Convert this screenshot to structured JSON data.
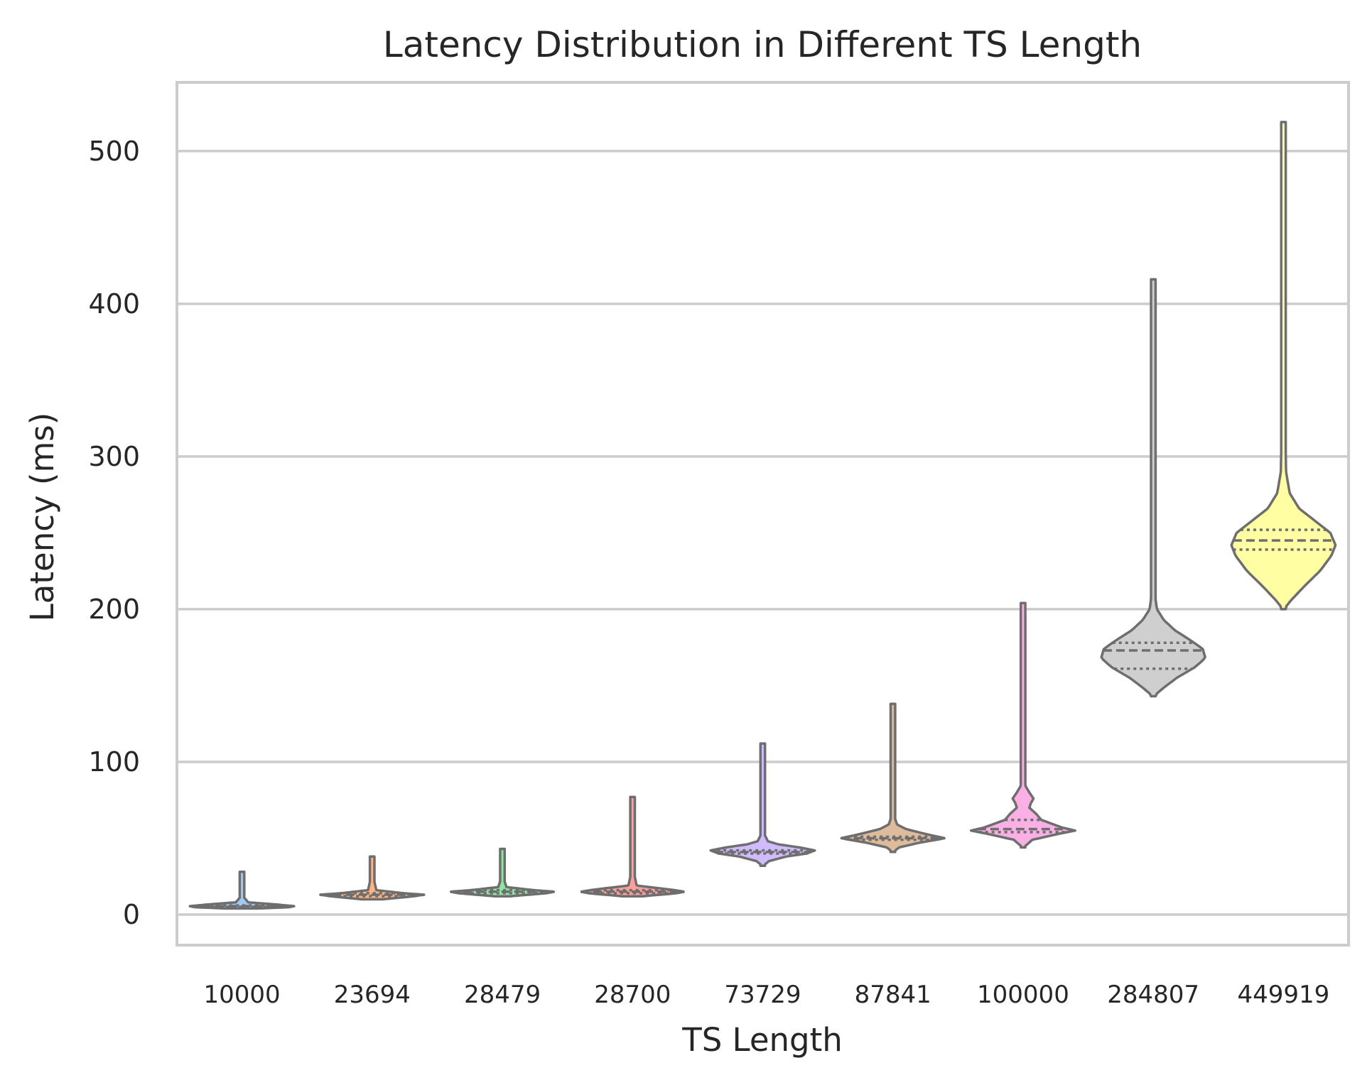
{
  "chart_data": {
    "type": "violin",
    "title": "Latency Distribution in Different TS Length",
    "xlabel": "TS Length",
    "ylabel": "Latency (ms)",
    "ylim": [
      -20,
      545
    ],
    "yticks": [
      0,
      100,
      200,
      300,
      400,
      500
    ],
    "grid": "horizontal",
    "inner": "quartiles",
    "categories": [
      "10000",
      "23694",
      "28479",
      "28700",
      "73729",
      "87841",
      "100000",
      "284807",
      "449919"
    ],
    "colors": [
      "#a1c9f4",
      "#ffb482",
      "#8de5a1",
      "#ff9f9b",
      "#d0bbff",
      "#debb9b",
      "#fab0e4",
      "#cfcfcf",
      "#fffea3"
    ],
    "distributions": [
      {
        "category": "10000",
        "min": 4,
        "q1": 5,
        "median": 5.5,
        "q3": 6,
        "max": 28,
        "profile": [
          [
            4,
            0.3
          ],
          [
            4.8,
            0.9
          ],
          [
            5.5,
            1.0
          ],
          [
            6.5,
            0.7
          ],
          [
            8,
            0.12
          ],
          [
            12,
            0.02
          ],
          [
            20,
            0.01
          ],
          [
            28,
            0
          ]
        ]
      },
      {
        "category": "23694",
        "min": 10,
        "q1": 12,
        "median": 13,
        "q3": 14,
        "max": 38,
        "profile": [
          [
            10,
            0.2
          ],
          [
            12,
            0.8
          ],
          [
            13,
            1.0
          ],
          [
            14,
            0.6
          ],
          [
            16,
            0.08
          ],
          [
            25,
            0.02
          ],
          [
            33,
            0.03
          ],
          [
            38,
            0
          ]
        ]
      },
      {
        "category": "28479",
        "min": 12,
        "q1": 14,
        "median": 15,
        "q3": 16,
        "max": 43,
        "profile": [
          [
            12,
            0.15
          ],
          [
            14,
            0.85
          ],
          [
            15,
            1.0
          ],
          [
            16,
            0.6
          ],
          [
            18,
            0.08
          ],
          [
            25,
            0.01
          ],
          [
            35,
            0.02
          ],
          [
            43,
            0
          ]
        ]
      },
      {
        "category": "28700",
        "min": 12,
        "q1": 14,
        "median": 15,
        "q3": 16,
        "max": 77,
        "profile": [
          [
            12,
            0.2
          ],
          [
            14,
            0.85
          ],
          [
            15,
            1.0
          ],
          [
            16.5,
            0.7
          ],
          [
            19,
            0.08
          ],
          [
            30,
            0.01
          ],
          [
            38,
            0.03
          ],
          [
            50,
            0.01
          ],
          [
            77,
            0
          ]
        ]
      },
      {
        "category": "73729",
        "min": 32,
        "q1": 40,
        "median": 41,
        "q3": 42,
        "max": 112,
        "profile": [
          [
            32,
            0.01
          ],
          [
            35,
            0.12
          ],
          [
            38,
            0.45
          ],
          [
            40,
            0.85
          ],
          [
            42,
            1.0
          ],
          [
            44,
            0.7
          ],
          [
            46,
            0.3
          ],
          [
            48,
            0.1
          ],
          [
            52,
            0.04
          ],
          [
            60,
            0.02
          ],
          [
            80,
            0.02
          ],
          [
            112,
            0
          ]
        ]
      },
      {
        "category": "87841",
        "min": 41,
        "q1": 49,
        "median": 50,
        "q3": 51,
        "max": 138,
        "profile": [
          [
            41,
            0.01
          ],
          [
            44,
            0.12
          ],
          [
            47,
            0.5
          ],
          [
            50,
            1.0
          ],
          [
            53,
            0.6
          ],
          [
            56,
            0.25
          ],
          [
            59,
            0.08
          ],
          [
            64,
            0.03
          ],
          [
            80,
            0.02
          ],
          [
            100,
            0.02
          ],
          [
            138,
            0
          ]
        ]
      },
      {
        "category": "100000",
        "min": 44,
        "q1": 54,
        "median": 56,
        "q3": 62,
        "max": 204,
        "profile": [
          [
            44,
            0.01
          ],
          [
            49,
            0.18
          ],
          [
            53,
            0.7
          ],
          [
            55,
            1.0
          ],
          [
            57,
            0.75
          ],
          [
            62,
            0.35
          ],
          [
            66,
            0.25
          ],
          [
            70,
            0.12
          ],
          [
            73,
            0.15
          ],
          [
            76,
            0.2
          ],
          [
            80,
            0.12
          ],
          [
            84,
            0.05
          ],
          [
            90,
            0.02
          ],
          [
            120,
            0.02
          ],
          [
            140,
            0.015
          ],
          [
            204,
            0
          ]
        ]
      },
      {
        "category": "284807",
        "min": 143,
        "q1": 161,
        "median": 173,
        "q3": 178,
        "max": 416,
        "profile": [
          [
            143,
            0.01
          ],
          [
            148,
            0.18
          ],
          [
            155,
            0.45
          ],
          [
            162,
            0.8
          ],
          [
            168,
            1.0
          ],
          [
            174,
            0.95
          ],
          [
            180,
            0.7
          ],
          [
            186,
            0.42
          ],
          [
            193,
            0.2
          ],
          [
            200,
            0.07
          ],
          [
            210,
            0.03
          ],
          [
            240,
            0.04
          ],
          [
            270,
            0.03
          ],
          [
            300,
            0.01
          ],
          [
            416,
            0
          ]
        ]
      },
      {
        "category": "449919",
        "min": 200,
        "q1": 239,
        "median": 245,
        "q3": 252,
        "max": 519,
        "profile": [
          [
            200,
            0.01
          ],
          [
            206,
            0.15
          ],
          [
            215,
            0.4
          ],
          [
            225,
            0.7
          ],
          [
            235,
            0.92
          ],
          [
            242,
            1.0
          ],
          [
            250,
            0.9
          ],
          [
            258,
            0.6
          ],
          [
            266,
            0.3
          ],
          [
            276,
            0.12
          ],
          [
            290,
            0.05
          ],
          [
            330,
            0.03
          ],
          [
            350,
            0.02
          ],
          [
            400,
            0.01
          ],
          [
            519,
            0
          ]
        ]
      }
    ]
  }
}
